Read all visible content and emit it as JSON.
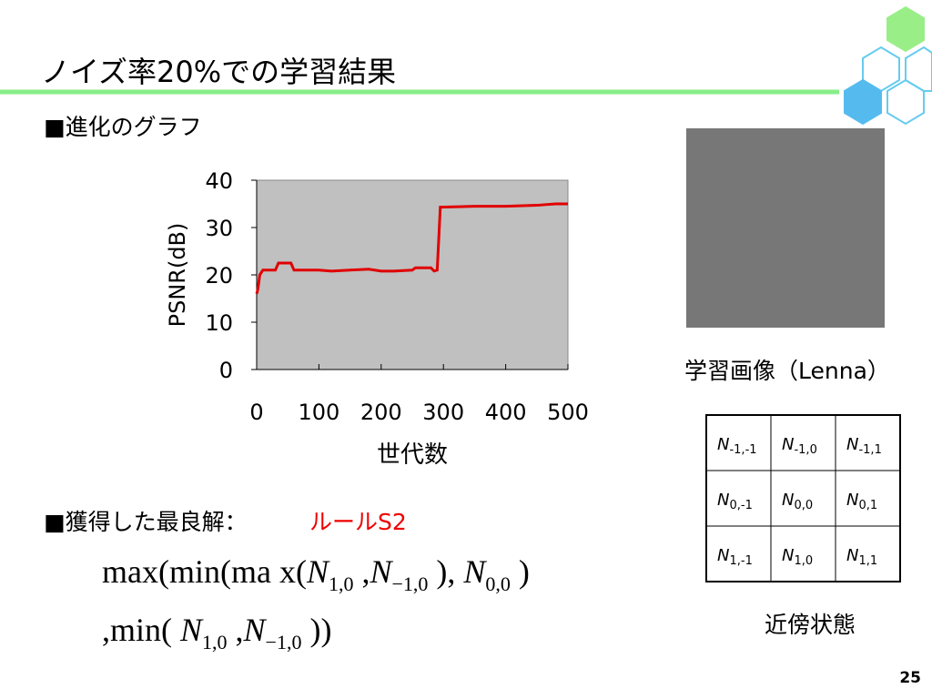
{
  "header": {
    "title": "ノイズ率20%での学習結果"
  },
  "bullets": [
    "■進化のグラフ",
    "■獲得した最良解："
  ],
  "rule_name": "ルールS2",
  "formula": {
    "line1": [
      {
        "t": "max(min(ma x("
      },
      {
        "t": "N",
        "sub": "1,0"
      },
      {
        "t": " ,"
      },
      {
        "t": "N",
        "sub": "−1,0"
      },
      {
        "t": " ), "
      },
      {
        "t": "N",
        "sub": "0,0"
      },
      {
        "t": " )"
      }
    ],
    "line2": [
      {
        "t": ",min( "
      },
      {
        "t": "N",
        "sub": "1,0"
      },
      {
        "t": " ,"
      },
      {
        "t": "N",
        "sub": "−1,0"
      },
      {
        "t": " ))"
      }
    ]
  },
  "image_caption": "学習画像（Lenna）",
  "neighborhood": {
    "caption": "近傍状態",
    "base": "N",
    "rows": [
      [
        "-1,-1",
        "-1,0",
        "-1,1"
      ],
      [
        "0,-1",
        "0,0",
        "0,1"
      ],
      [
        "1,-1",
        "1,0",
        "1,1"
      ]
    ]
  },
  "page_number": "25",
  "chart_data": {
    "type": "line",
    "xlabel": "世代数",
    "ylabel": "PSNR(dB)",
    "x": [
      0,
      2,
      5,
      10,
      20,
      30,
      35,
      40,
      55,
      60,
      100,
      120,
      150,
      180,
      200,
      220,
      250,
      255,
      280,
      285,
      290,
      295,
      350,
      400,
      450,
      480,
      500
    ],
    "series": [
      {
        "color": "#e00000",
        "values": [
          16,
          17,
          20,
          21,
          21,
          21,
          22.5,
          22.5,
          22.5,
          21,
          21,
          20.8,
          21,
          21.2,
          20.8,
          20.8,
          21,
          21.5,
          21.5,
          20.8,
          21,
          34.3,
          34.5,
          34.5,
          34.7,
          35,
          35
        ]
      }
    ],
    "xlim": [
      0,
      500
    ],
    "xticks": [
      0,
      100,
      200,
      300,
      400,
      500
    ],
    "ylim": [
      0,
      40
    ],
    "yticks": [
      0,
      10,
      20,
      30,
      40
    ],
    "plot_background": "#c0c0c0"
  }
}
